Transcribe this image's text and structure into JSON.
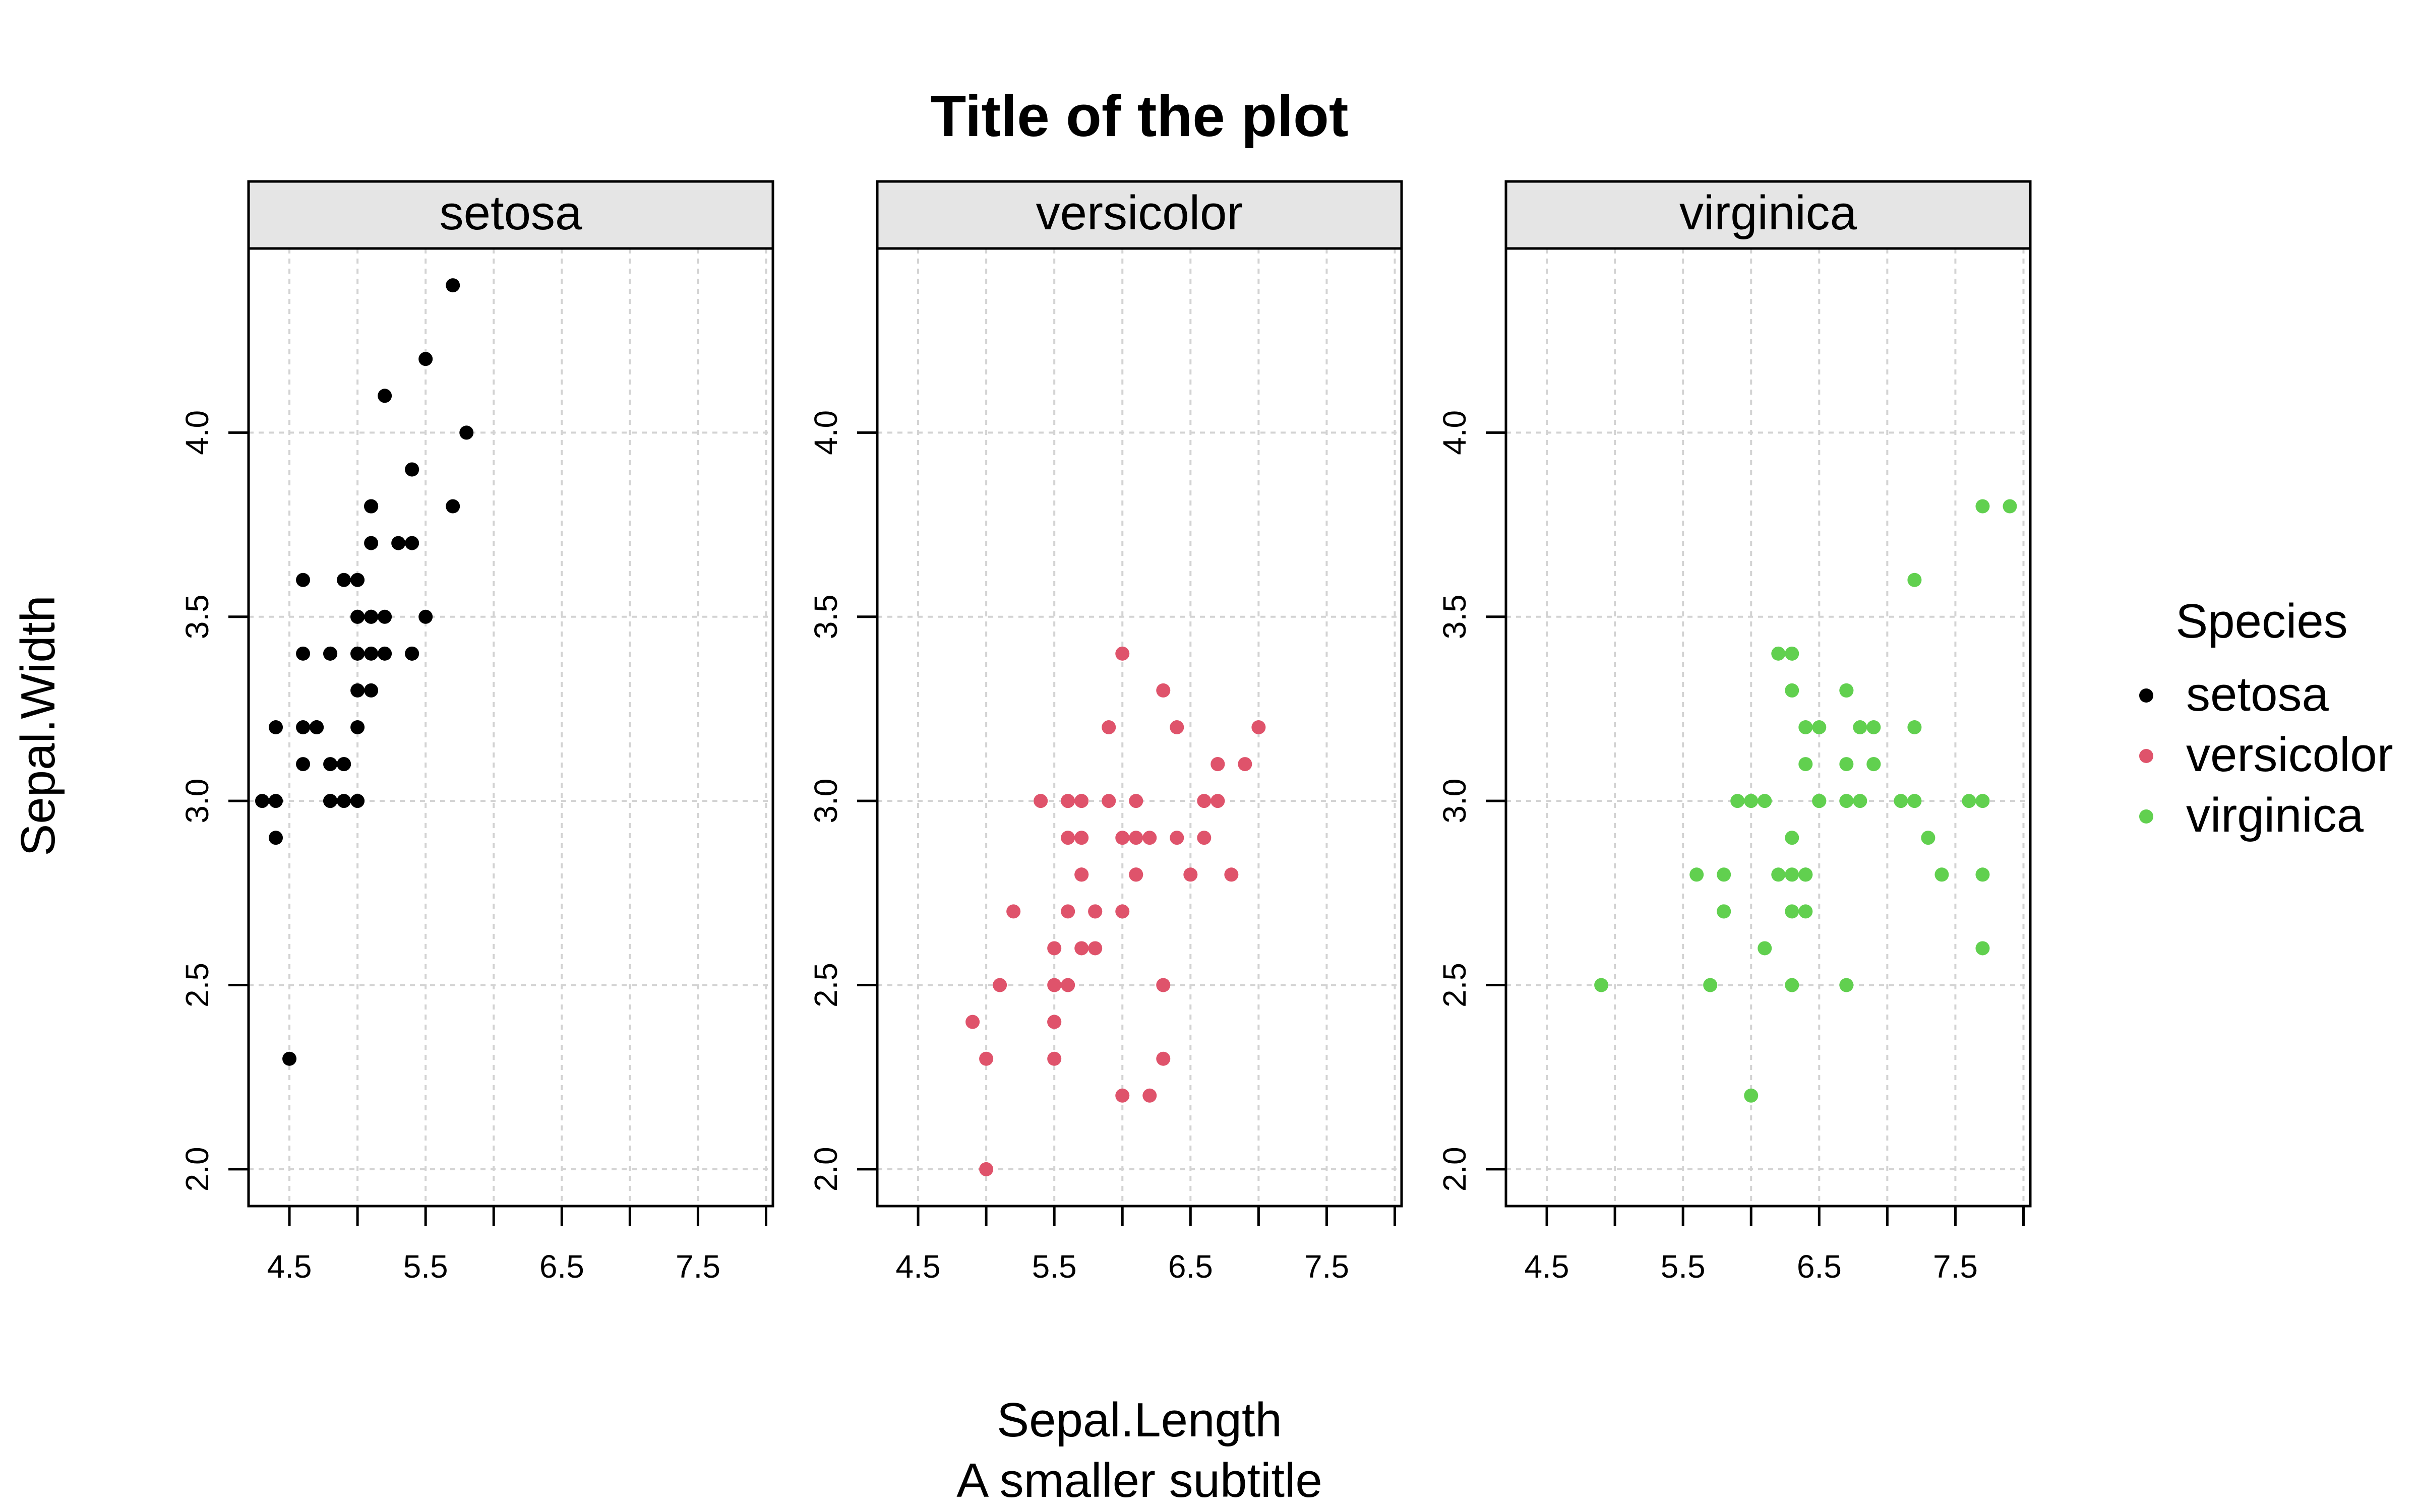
{
  "chart_data": {
    "type": "scatter",
    "title": "Title of the plot",
    "subtitle": "A smaller subtitle",
    "xlabel": "Sepal.Length",
    "ylabel": "Sepal.Width",
    "xlim": [
      4.2,
      8.05
    ],
    "ylim": [
      1.9,
      4.5
    ],
    "x_ticks": [
      "4.5",
      "5.5",
      "6.5",
      "7.5"
    ],
    "x_tick_values": [
      4.5,
      5.5,
      6.5,
      7.5
    ],
    "x_minor_ticks": [
      5.0,
      6.0,
      7.0,
      8.0
    ],
    "y_ticks": [
      "2.0",
      "2.5",
      "3.0",
      "3.5",
      "4.0"
    ],
    "y_tick_values": [
      2.0,
      2.5,
      3.0,
      3.5,
      4.0
    ],
    "grid": true,
    "legend": {
      "title": "Species",
      "position": "right"
    },
    "series": [
      {
        "name": "setosa",
        "color": "#000000",
        "points": [
          [
            5.1,
            3.5
          ],
          [
            4.9,
            3.0
          ],
          [
            4.7,
            3.2
          ],
          [
            4.6,
            3.1
          ],
          [
            5.0,
            3.6
          ],
          [
            5.4,
            3.9
          ],
          [
            4.6,
            3.4
          ],
          [
            5.0,
            3.4
          ],
          [
            4.4,
            2.9
          ],
          [
            4.9,
            3.1
          ],
          [
            5.4,
            3.7
          ],
          [
            4.8,
            3.4
          ],
          [
            4.8,
            3.0
          ],
          [
            4.3,
            3.0
          ],
          [
            5.8,
            4.0
          ],
          [
            5.7,
            4.4
          ],
          [
            5.4,
            3.9
          ],
          [
            5.1,
            3.5
          ],
          [
            5.7,
            3.8
          ],
          [
            5.1,
            3.8
          ],
          [
            5.4,
            3.4
          ],
          [
            5.1,
            3.7
          ],
          [
            4.6,
            3.6
          ],
          [
            5.1,
            3.3
          ],
          [
            4.8,
            3.4
          ],
          [
            5.0,
            3.0
          ],
          [
            5.0,
            3.4
          ],
          [
            5.2,
            3.5
          ],
          [
            5.2,
            3.4
          ],
          [
            4.7,
            3.2
          ],
          [
            4.8,
            3.1
          ],
          [
            5.4,
            3.4
          ],
          [
            5.2,
            4.1
          ],
          [
            5.5,
            4.2
          ],
          [
            4.9,
            3.1
          ],
          [
            5.0,
            3.2
          ],
          [
            5.5,
            3.5
          ],
          [
            4.9,
            3.6
          ],
          [
            4.4,
            3.0
          ],
          [
            5.1,
            3.4
          ],
          [
            5.0,
            3.5
          ],
          [
            4.5,
            2.3
          ],
          [
            4.4,
            3.2
          ],
          [
            5.0,
            3.5
          ],
          [
            5.1,
            3.8
          ],
          [
            4.8,
            3.0
          ],
          [
            5.1,
            3.8
          ],
          [
            4.6,
            3.2
          ],
          [
            5.3,
            3.7
          ],
          [
            5.0,
            3.3
          ]
        ]
      },
      {
        "name": "versicolor",
        "color": "#df536b",
        "points": [
          [
            7.0,
            3.2
          ],
          [
            6.4,
            3.2
          ],
          [
            6.9,
            3.1
          ],
          [
            5.5,
            2.3
          ],
          [
            6.5,
            2.8
          ],
          [
            5.7,
            2.8
          ],
          [
            6.3,
            3.3
          ],
          [
            4.9,
            2.4
          ],
          [
            6.6,
            2.9
          ],
          [
            5.2,
            2.7
          ],
          [
            5.0,
            2.0
          ],
          [
            5.9,
            3.0
          ],
          [
            6.0,
            2.2
          ],
          [
            6.1,
            2.9
          ],
          [
            5.6,
            2.9
          ],
          [
            6.7,
            3.1
          ],
          [
            5.6,
            3.0
          ],
          [
            5.8,
            2.7
          ],
          [
            6.2,
            2.2
          ],
          [
            5.6,
            2.5
          ],
          [
            5.9,
            3.2
          ],
          [
            6.1,
            2.8
          ],
          [
            6.3,
            2.5
          ],
          [
            6.1,
            2.8
          ],
          [
            6.4,
            2.9
          ],
          [
            6.6,
            3.0
          ],
          [
            6.8,
            2.8
          ],
          [
            6.7,
            3.0
          ],
          [
            6.0,
            2.9
          ],
          [
            5.7,
            2.6
          ],
          [
            5.5,
            2.4
          ],
          [
            5.5,
            2.4
          ],
          [
            5.8,
            2.7
          ],
          [
            6.0,
            2.7
          ],
          [
            5.4,
            3.0
          ],
          [
            6.0,
            3.4
          ],
          [
            6.7,
            3.1
          ],
          [
            6.3,
            2.3
          ],
          [
            5.6,
            3.0
          ],
          [
            5.5,
            2.5
          ],
          [
            5.5,
            2.6
          ],
          [
            6.1,
            3.0
          ],
          [
            5.8,
            2.6
          ],
          [
            5.0,
            2.3
          ],
          [
            5.6,
            2.7
          ],
          [
            5.7,
            3.0
          ],
          [
            5.7,
            2.9
          ],
          [
            6.2,
            2.9
          ],
          [
            5.1,
            2.5
          ],
          [
            5.7,
            2.8
          ]
        ]
      },
      {
        "name": "virginica",
        "color": "#61d04f",
        "points": [
          [
            6.3,
            3.3
          ],
          [
            5.8,
            2.7
          ],
          [
            7.1,
            3.0
          ],
          [
            6.3,
            2.9
          ],
          [
            6.5,
            3.0
          ],
          [
            7.6,
            3.0
          ],
          [
            4.9,
            2.5
          ],
          [
            7.3,
            2.9
          ],
          [
            6.7,
            2.5
          ],
          [
            7.2,
            3.6
          ],
          [
            6.5,
            3.2
          ],
          [
            6.4,
            2.7
          ],
          [
            6.8,
            3.0
          ],
          [
            5.7,
            2.5
          ],
          [
            5.8,
            2.8
          ],
          [
            6.4,
            3.2
          ],
          [
            6.5,
            3.0
          ],
          [
            7.7,
            3.8
          ],
          [
            7.7,
            2.6
          ],
          [
            6.0,
            2.2
          ],
          [
            6.9,
            3.2
          ],
          [
            5.6,
            2.8
          ],
          [
            7.7,
            2.8
          ],
          [
            6.3,
            2.7
          ],
          [
            6.7,
            3.3
          ],
          [
            7.2,
            3.2
          ],
          [
            6.2,
            2.8
          ],
          [
            6.1,
            3.0
          ],
          [
            6.4,
            2.8
          ],
          [
            7.2,
            3.0
          ],
          [
            7.4,
            2.8
          ],
          [
            7.9,
            3.8
          ],
          [
            6.4,
            2.8
          ],
          [
            6.3,
            2.8
          ],
          [
            6.1,
            2.6
          ],
          [
            7.7,
            3.0
          ],
          [
            6.3,
            3.4
          ],
          [
            6.4,
            3.1
          ],
          [
            6.0,
            3.0
          ],
          [
            6.9,
            3.1
          ],
          [
            6.7,
            3.1
          ],
          [
            6.9,
            3.1
          ],
          [
            5.8,
            2.7
          ],
          [
            6.8,
            3.2
          ],
          [
            6.7,
            3.3
          ],
          [
            6.7,
            3.0
          ],
          [
            6.3,
            2.5
          ],
          [
            6.5,
            3.0
          ],
          [
            6.2,
            3.4
          ],
          [
            5.9,
            3.0
          ]
        ]
      }
    ]
  }
}
